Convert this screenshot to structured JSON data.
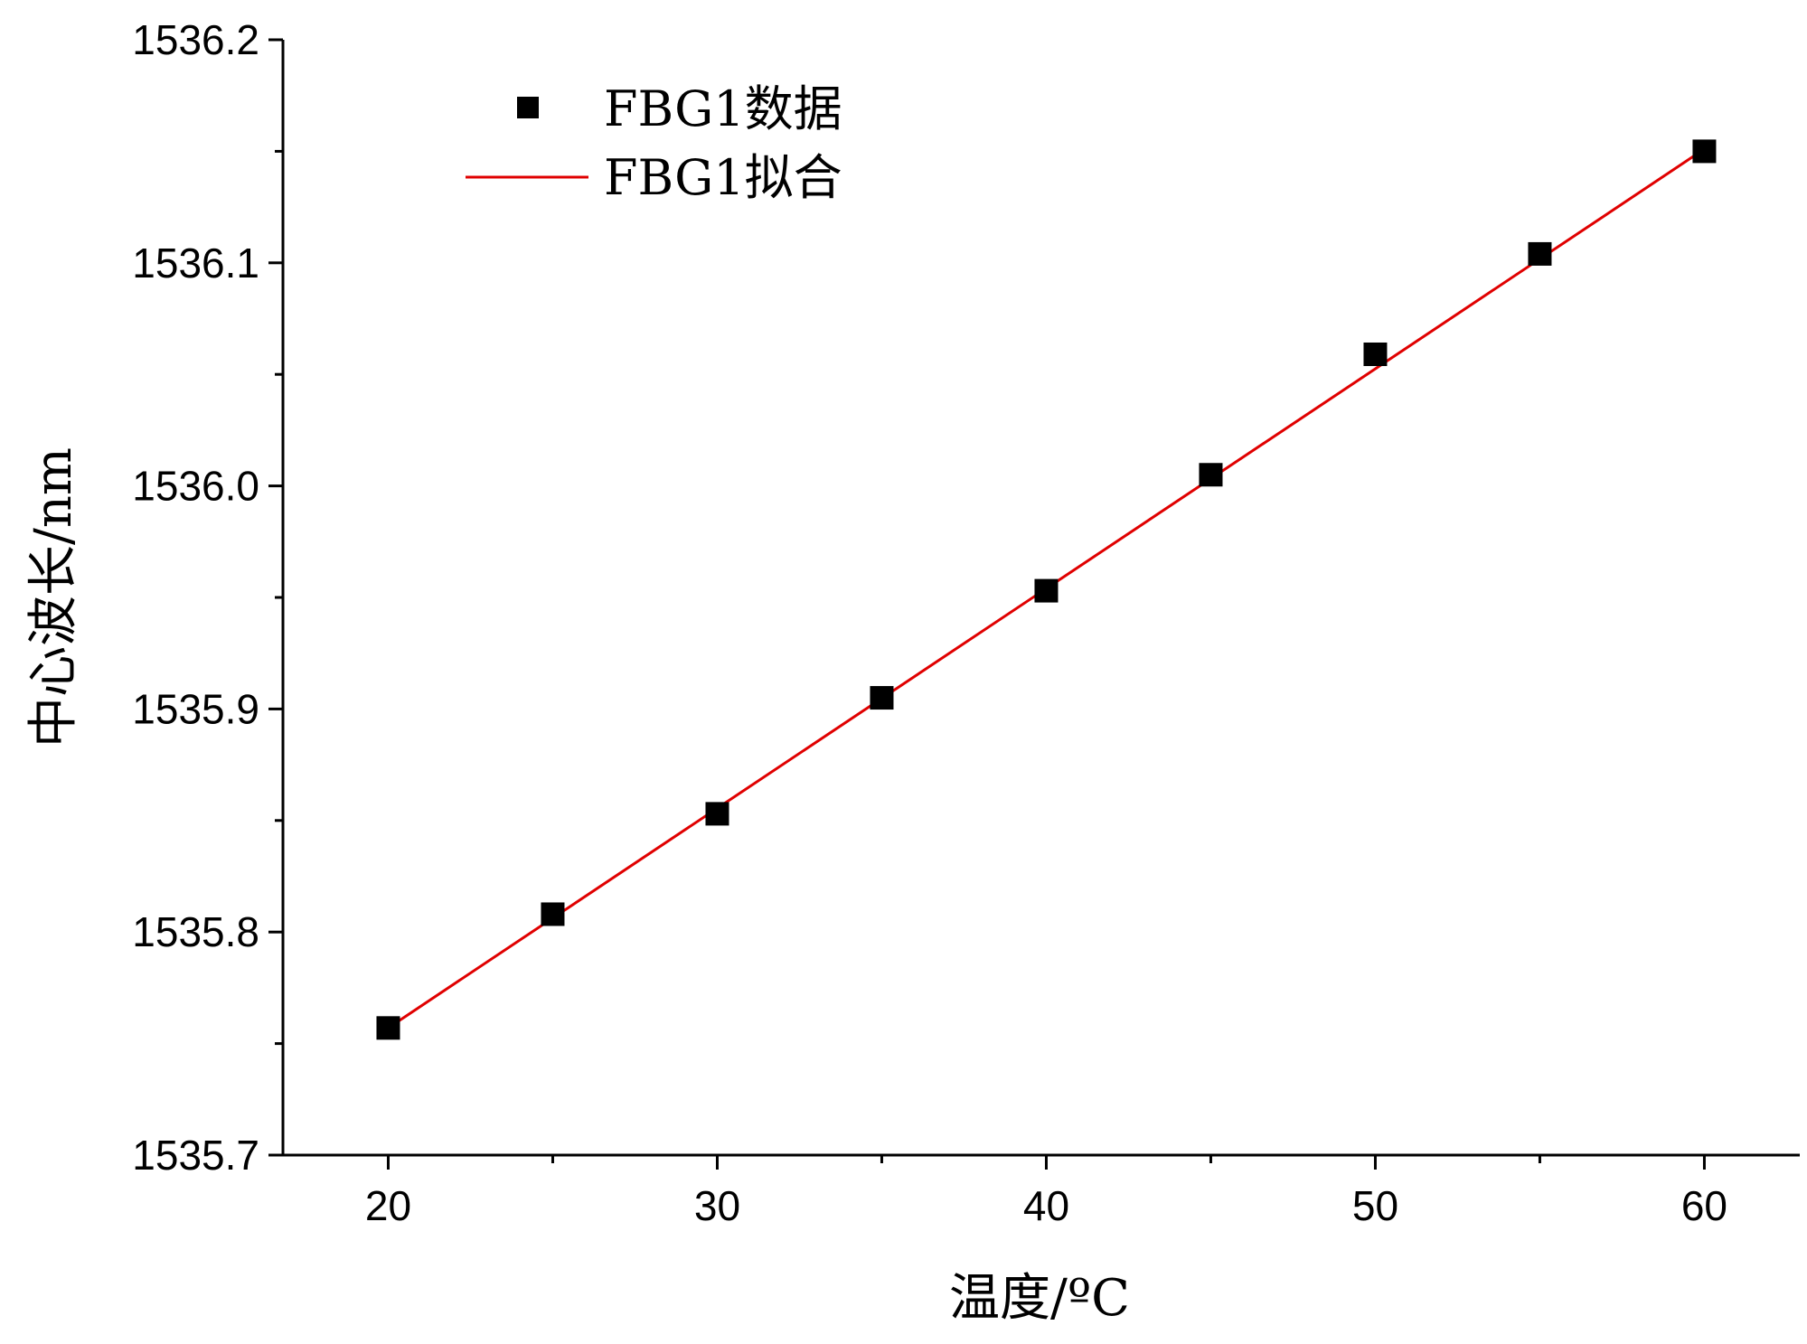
{
  "chart_data": {
    "type": "scatter",
    "xlabel": "温度/ºC",
    "ylabel": "中心波长/nm",
    "xlim": [
      16.8,
      62.9
    ],
    "ylim": [
      1535.7,
      1536.2
    ],
    "x_ticks": [
      "20",
      "30",
      "40",
      "50",
      "60"
    ],
    "y_ticks": [
      "1535.7",
      "1535.8",
      "1535.9",
      "1536.0",
      "1536.1",
      "1536.2"
    ],
    "legend": {
      "position": "top-left"
    },
    "grid": false,
    "series": [
      {
        "name": "FBG1数据",
        "kind": "points",
        "color": "#000000",
        "x": [
          20,
          25,
          30,
          35,
          40,
          45,
          50,
          55,
          60
        ],
        "y": [
          1535.757,
          1535.808,
          1535.853,
          1535.905,
          1535.953,
          1536.005,
          1536.059,
          1536.104,
          1536.15
        ]
      },
      {
        "name": "FBG1拟合",
        "kind": "line",
        "color": "#e00000",
        "x": [
          20,
          60
        ],
        "y": [
          1535.757,
          1536.151
        ]
      }
    ]
  }
}
